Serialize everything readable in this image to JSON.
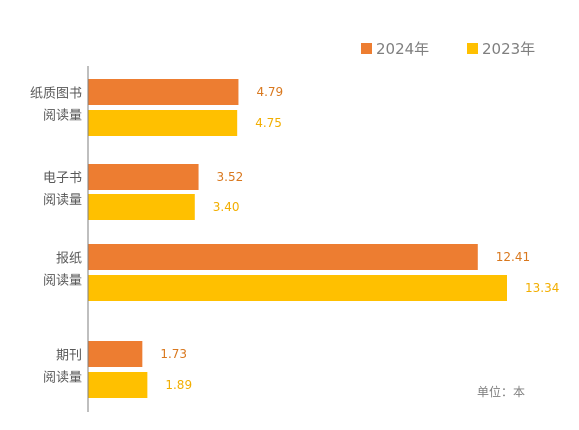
{
  "chart_data": {
    "type": "bar",
    "orientation": "horizontal",
    "categories": [
      [
        "纸质图书",
        "阅读量"
      ],
      [
        "电子书",
        "阅读量"
      ],
      [
        "报纸",
        "阅读量"
      ],
      [
        "期刊",
        "阅读量"
      ]
    ],
    "series": [
      {
        "name": "2024年",
        "values": [
          4.79,
          3.52,
          12.41,
          1.73
        ],
        "color": "#ED7D31",
        "label_color": "#D9781E"
      },
      {
        "name": "2023年",
        "values": [
          4.75,
          3.4,
          13.34,
          1.89
        ],
        "color": "#FFC000",
        "label_color": "#F2AE00"
      }
    ],
    "value_labels": [
      [
        "4.79",
        "3.52",
        "12.41",
        "1.73"
      ],
      [
        "4.75",
        "3.40",
        "13.34",
        "1.89"
      ]
    ],
    "xlim": [
      0,
      13.34
    ],
    "grid": false,
    "legend_position": "top-right",
    "unit_note": "单位：本",
    "axis_color": "#7f7f7f"
  }
}
